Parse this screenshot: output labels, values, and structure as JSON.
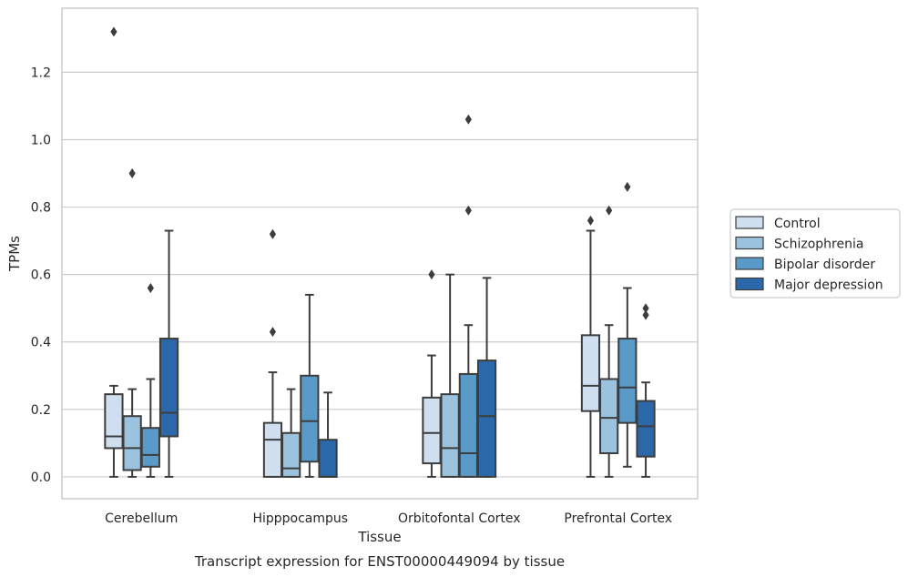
{
  "chart_data": {
    "type": "boxplot",
    "xlabel": "Tissue",
    "ylabel": "TPMs",
    "caption": "Transcript expression for ENST00000449094 by tissue",
    "categories": [
      "Cerebellum",
      "Hipppocampus",
      "Orbitofontal Cortex",
      "Prefrontal Cortex"
    ],
    "ylim": [
      -0.065,
      1.39
    ],
    "yticks": [
      "0.0",
      "0.2",
      "0.4",
      "0.6",
      "0.8",
      "1.0",
      "1.2"
    ],
    "ytick_values": [
      0.0,
      0.2,
      0.4,
      0.6,
      0.8,
      1.0,
      1.2
    ],
    "grid": "horizontal",
    "legend_position": "right",
    "series": [
      {
        "name": "Control",
        "color": "#cfdfef",
        "boxes": [
          {
            "whislo": 0.0,
            "q1": 0.085,
            "med": 0.12,
            "q3": 0.245,
            "whishi": 0.27,
            "fliers": [
              1.32
            ]
          },
          {
            "whislo": 0.0,
            "q1": 0.0,
            "med": 0.11,
            "q3": 0.16,
            "whishi": 0.31,
            "fliers": [
              0.43,
              0.72
            ]
          },
          {
            "whislo": 0.0,
            "q1": 0.04,
            "med": 0.13,
            "q3": 0.235,
            "whishi": 0.36,
            "fliers": [
              0.6
            ]
          },
          {
            "whislo": 0.0,
            "q1": 0.195,
            "med": 0.27,
            "q3": 0.42,
            "whishi": 0.73,
            "fliers": [
              0.76
            ]
          }
        ]
      },
      {
        "name": "Schizophrenia",
        "color": "#9cc3dd",
        "boxes": [
          {
            "whislo": 0.0,
            "q1": 0.02,
            "med": 0.085,
            "q3": 0.18,
            "whishi": 0.26,
            "fliers": [
              0.9
            ]
          },
          {
            "whislo": 0.0,
            "q1": 0.0,
            "med": 0.025,
            "q3": 0.13,
            "whishi": 0.26,
            "fliers": []
          },
          {
            "whislo": 0.0,
            "q1": 0.0,
            "med": 0.085,
            "q3": 0.245,
            "whishi": 0.6,
            "fliers": []
          },
          {
            "whislo": 0.0,
            "q1": 0.07,
            "med": 0.175,
            "q3": 0.29,
            "whishi": 0.45,
            "fliers": [
              0.79
            ]
          }
        ]
      },
      {
        "name": "Bipolar disorder",
        "color": "#5a9ac8",
        "boxes": [
          {
            "whislo": 0.0,
            "q1": 0.03,
            "med": 0.065,
            "q3": 0.145,
            "whishi": 0.29,
            "fliers": [
              0.56
            ]
          },
          {
            "whislo": 0.0,
            "q1": 0.045,
            "med": 0.165,
            "q3": 0.3,
            "whishi": 0.54,
            "fliers": []
          },
          {
            "whislo": 0.0,
            "q1": 0.0,
            "med": 0.07,
            "q3": 0.305,
            "whishi": 0.45,
            "fliers": [
              0.79,
              1.06
            ]
          },
          {
            "whislo": 0.03,
            "q1": 0.16,
            "med": 0.265,
            "q3": 0.41,
            "whishi": 0.56,
            "fliers": [
              0.86
            ]
          }
        ]
      },
      {
        "name": "Major depression",
        "color": "#2a68a9",
        "boxes": [
          {
            "whislo": 0.0,
            "q1": 0.12,
            "med": 0.19,
            "q3": 0.41,
            "whishi": 0.73,
            "fliers": []
          },
          {
            "whislo": 0.0,
            "q1": 0.0,
            "med": 0.0,
            "q3": 0.11,
            "whishi": 0.25,
            "fliers": []
          },
          {
            "whislo": 0.0,
            "q1": 0.0,
            "med": 0.18,
            "q3": 0.345,
            "whishi": 0.59,
            "fliers": []
          },
          {
            "whislo": 0.0,
            "q1": 0.06,
            "med": 0.15,
            "q3": 0.225,
            "whishi": 0.28,
            "fliers": [
              0.48,
              0.5
            ]
          }
        ]
      }
    ],
    "style": {
      "edge_color": "#3d3d3d",
      "grid_color": "#cccccc",
      "frame_color": "#cccccc"
    }
  }
}
